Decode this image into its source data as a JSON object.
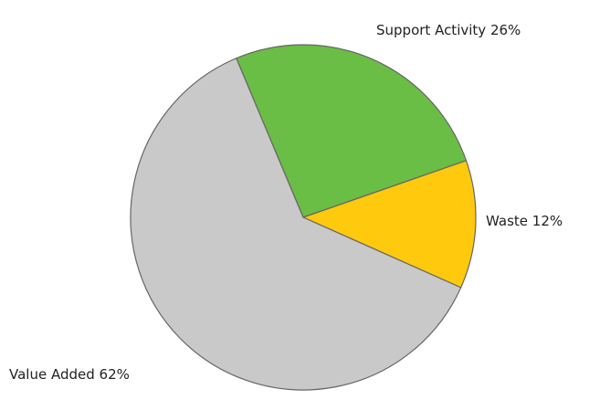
{
  "chart_data": {
    "type": "pie",
    "categories": [
      "Support Activity",
      "Waste",
      "Value Added"
    ],
    "values": [
      26,
      12,
      62
    ],
    "value_labels": [
      "26%",
      "12%",
      "62%"
    ],
    "colors": [
      "#6abd45",
      "#ffc90e",
      "#c9c9c9"
    ]
  }
}
